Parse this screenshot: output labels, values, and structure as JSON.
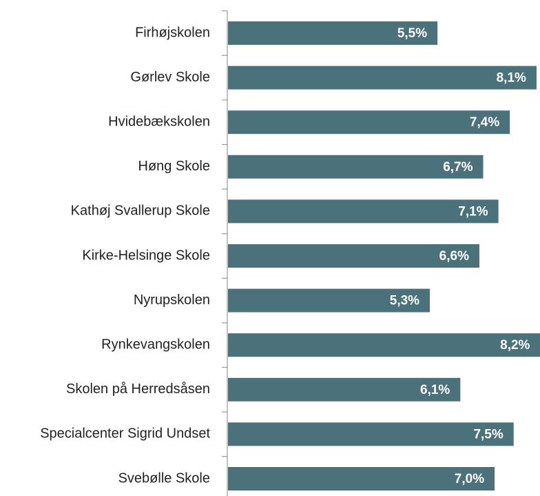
{
  "chart_data": {
    "type": "bar",
    "orientation": "horizontal",
    "categories": [
      "Firhøjskolen",
      "Gørlev Skole",
      "Hvidebækskolen",
      "Høng Skole",
      "Kathøj Svallerup Skole",
      "Kirke-Helsinge Skole",
      "Nyrupskolen",
      "Rynkevangskolen",
      "Skolen på Herredsåsen",
      "Specialcenter Sigrid Undset",
      "Svebølle Skole"
    ],
    "values": [
      5.5,
      8.1,
      7.4,
      6.7,
      7.1,
      6.6,
      5.3,
      8.2,
      6.1,
      7.5,
      7.0
    ],
    "value_labels": [
      "5,5%",
      "8,1%",
      "7,4%",
      "6,7%",
      "7,1%",
      "6,6%",
      "5,3%",
      "8,2%",
      "6,1%",
      "7,5%",
      "7,0%"
    ],
    "color": "#4b717a"
  }
}
